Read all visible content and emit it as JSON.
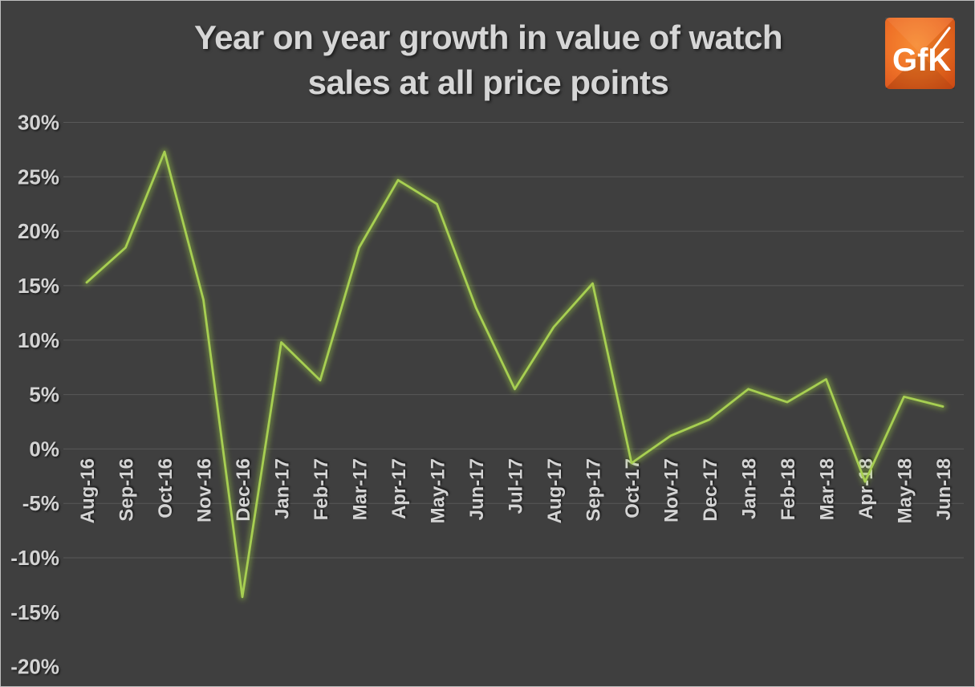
{
  "window": {
    "background": "#3f3f3f",
    "border_color": "#bfbfbf"
  },
  "title": {
    "line1": "Year on year growth in value of watch",
    "line2": "sales at all price points",
    "color": "#d6d6d6"
  },
  "logo": {
    "text": "GfK",
    "inner_color": "#f6872b",
    "outer_color": "#da4f16",
    "text_color": "#ffffff"
  },
  "chart_data": {
    "type": "line",
    "title": "Year on year growth in value of watch sales at all price points",
    "categories": [
      "Aug-16",
      "Sep-16",
      "Oct-16",
      "Nov-16",
      "Dec-16",
      "Jan-17",
      "Feb-17",
      "Mar-17",
      "Apr-17",
      "May-17",
      "Jun-17",
      "Jul-17",
      "Aug-17",
      "Sep-17",
      "Oct-17",
      "Nov-17",
      "Dec-17",
      "Jan-18",
      "Feb-18",
      "Mar-18",
      "Apr-18",
      "May-18",
      "Jun-18"
    ],
    "series": [
      {
        "name": "Year on year growth in value of watch sales",
        "values": [
          15.3,
          18.5,
          27.3,
          13.7,
          -13.6,
          9.8,
          6.3,
          18.5,
          24.7,
          22.5,
          13.0,
          5.5,
          11.2,
          15.2,
          -1.3,
          1.2,
          2.7,
          5.5,
          4.3,
          6.4,
          -3.0,
          4.8,
          3.9
        ]
      }
    ],
    "unit": "%",
    "xlabel": "",
    "ylabel": "",
    "ylim": [
      -20,
      30
    ],
    "ytick_step": 5,
    "ytick_labels": [
      "30%",
      "25%",
      "20%",
      "15%",
      "10%",
      "5%",
      "0%",
      "-5%",
      "-10%",
      "-15%",
      "-20%"
    ],
    "ytick_values": [
      30,
      25,
      20,
      15,
      10,
      5,
      0,
      -5,
      -10,
      -15,
      -20
    ],
    "gridlines_at": [
      30,
      25,
      20,
      15,
      10,
      5,
      0,
      -5,
      -10
    ],
    "grid_on": true,
    "grid_color": "#595959",
    "line_color": "#a7cf52",
    "glow_color": "#9ccb3f",
    "axis_text_color": "#d4d4d4",
    "legend_position": "none",
    "x_labels_rotation_deg": -90
  }
}
